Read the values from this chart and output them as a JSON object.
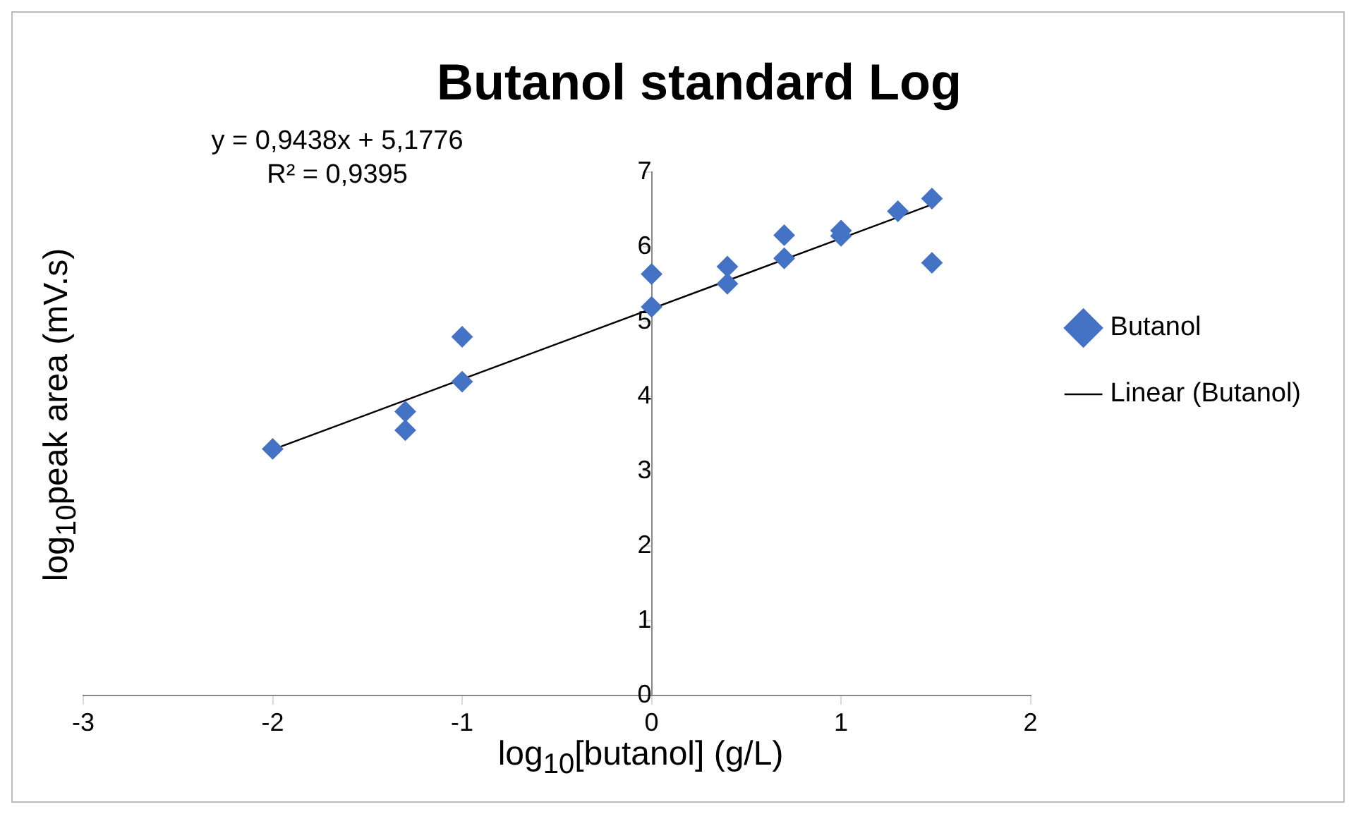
{
  "chart_data": {
    "type": "scatter",
    "title": "Butanol standard Log",
    "xlabel": "log$_{10}$[butanol] (g/L)",
    "ylabel": "log$_{10}$peak area (mV.s)",
    "annotations": [
      "y = 0,9438x + 5,1776",
      "R² = 0,9395"
    ],
    "series": [
      {
        "name": "Butanol",
        "marker": "diamond",
        "color": "#4472c4",
        "x": [
          -2,
          -1.3,
          -1.3,
          -1,
          -1,
          0,
          0,
          0.4,
          0.4,
          0.7,
          0.7,
          1,
          1,
          1.3,
          1.48,
          1.48
        ],
        "values": [
          3.3,
          3.8,
          3.55,
          4.8,
          4.2,
          5.2,
          5.64,
          5.74,
          5.51,
          6.16,
          5.85,
          6.22,
          6.15,
          6.48,
          6.65,
          5.79
        ]
      },
      {
        "name": "Linear (Butanol)",
        "type": "line",
        "marker": "none",
        "color": "#000000",
        "x": [
          -2,
          1.48
        ],
        "values": [
          3.29,
          6.57
        ]
      }
    ],
    "xlim": [
      -3,
      2
    ],
    "xticks": [
      -3,
      -2,
      -1,
      0,
      1,
      2
    ],
    "ylim": [
      0,
      7
    ],
    "yticks": [
      0,
      1,
      2,
      3,
      4,
      5,
      6,
      7
    ],
    "grid": false,
    "legend": "right"
  }
}
